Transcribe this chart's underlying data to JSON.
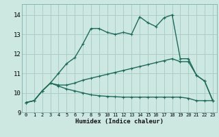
{
  "xlabel": "Humidex (Indice chaleur)",
  "background_color": "#cce8e0",
  "grid_color": "#aacfc8",
  "line_color": "#1a6b5a",
  "xlim": [
    -0.5,
    23.5
  ],
  "ylim": [
    9.0,
    14.55
  ],
  "yticks": [
    9,
    10,
    11,
    12,
    13,
    14
  ],
  "xticks": [
    0,
    1,
    2,
    3,
    4,
    5,
    6,
    7,
    8,
    9,
    10,
    11,
    12,
    13,
    14,
    15,
    16,
    17,
    18,
    19,
    20,
    21,
    22,
    23
  ],
  "line1_x": [
    0,
    1,
    2,
    3,
    4,
    5,
    6,
    7,
    8,
    9,
    10,
    11,
    12,
    13,
    14,
    15,
    16,
    17,
    18,
    19,
    20,
    21,
    22,
    23
  ],
  "line1_y": [
    9.5,
    9.6,
    10.1,
    10.5,
    11.0,
    11.5,
    11.8,
    12.5,
    13.3,
    13.3,
    13.1,
    13.0,
    13.1,
    13.0,
    13.9,
    13.6,
    13.4,
    13.85,
    14.0,
    11.75,
    11.75,
    10.9,
    10.6,
    9.6
  ],
  "line2_x": [
    0,
    1,
    2,
    3,
    4,
    5,
    6,
    7,
    8,
    9,
    10,
    11,
    12,
    13,
    14,
    15,
    16,
    17,
    18,
    19,
    20,
    21,
    22,
    23
  ],
  "line2_y": [
    9.5,
    9.6,
    10.1,
    10.5,
    10.4,
    10.4,
    10.5,
    10.65,
    10.75,
    10.85,
    10.95,
    11.05,
    11.15,
    11.25,
    11.35,
    11.45,
    11.55,
    11.65,
    11.75,
    11.6,
    11.6,
    10.9,
    10.6,
    9.6
  ],
  "line3_x": [
    0,
    1,
    2,
    3,
    4,
    5,
    6,
    7,
    8,
    9,
    10,
    11,
    12,
    13,
    14,
    15,
    16,
    17,
    18,
    19,
    20,
    21,
    22,
    23
  ],
  "line3_y": [
    9.5,
    9.6,
    10.1,
    10.5,
    10.35,
    10.2,
    10.1,
    10.0,
    9.9,
    9.85,
    9.82,
    9.8,
    9.78,
    9.78,
    9.78,
    9.78,
    9.78,
    9.78,
    9.78,
    9.78,
    9.72,
    9.6,
    9.6,
    9.6
  ]
}
